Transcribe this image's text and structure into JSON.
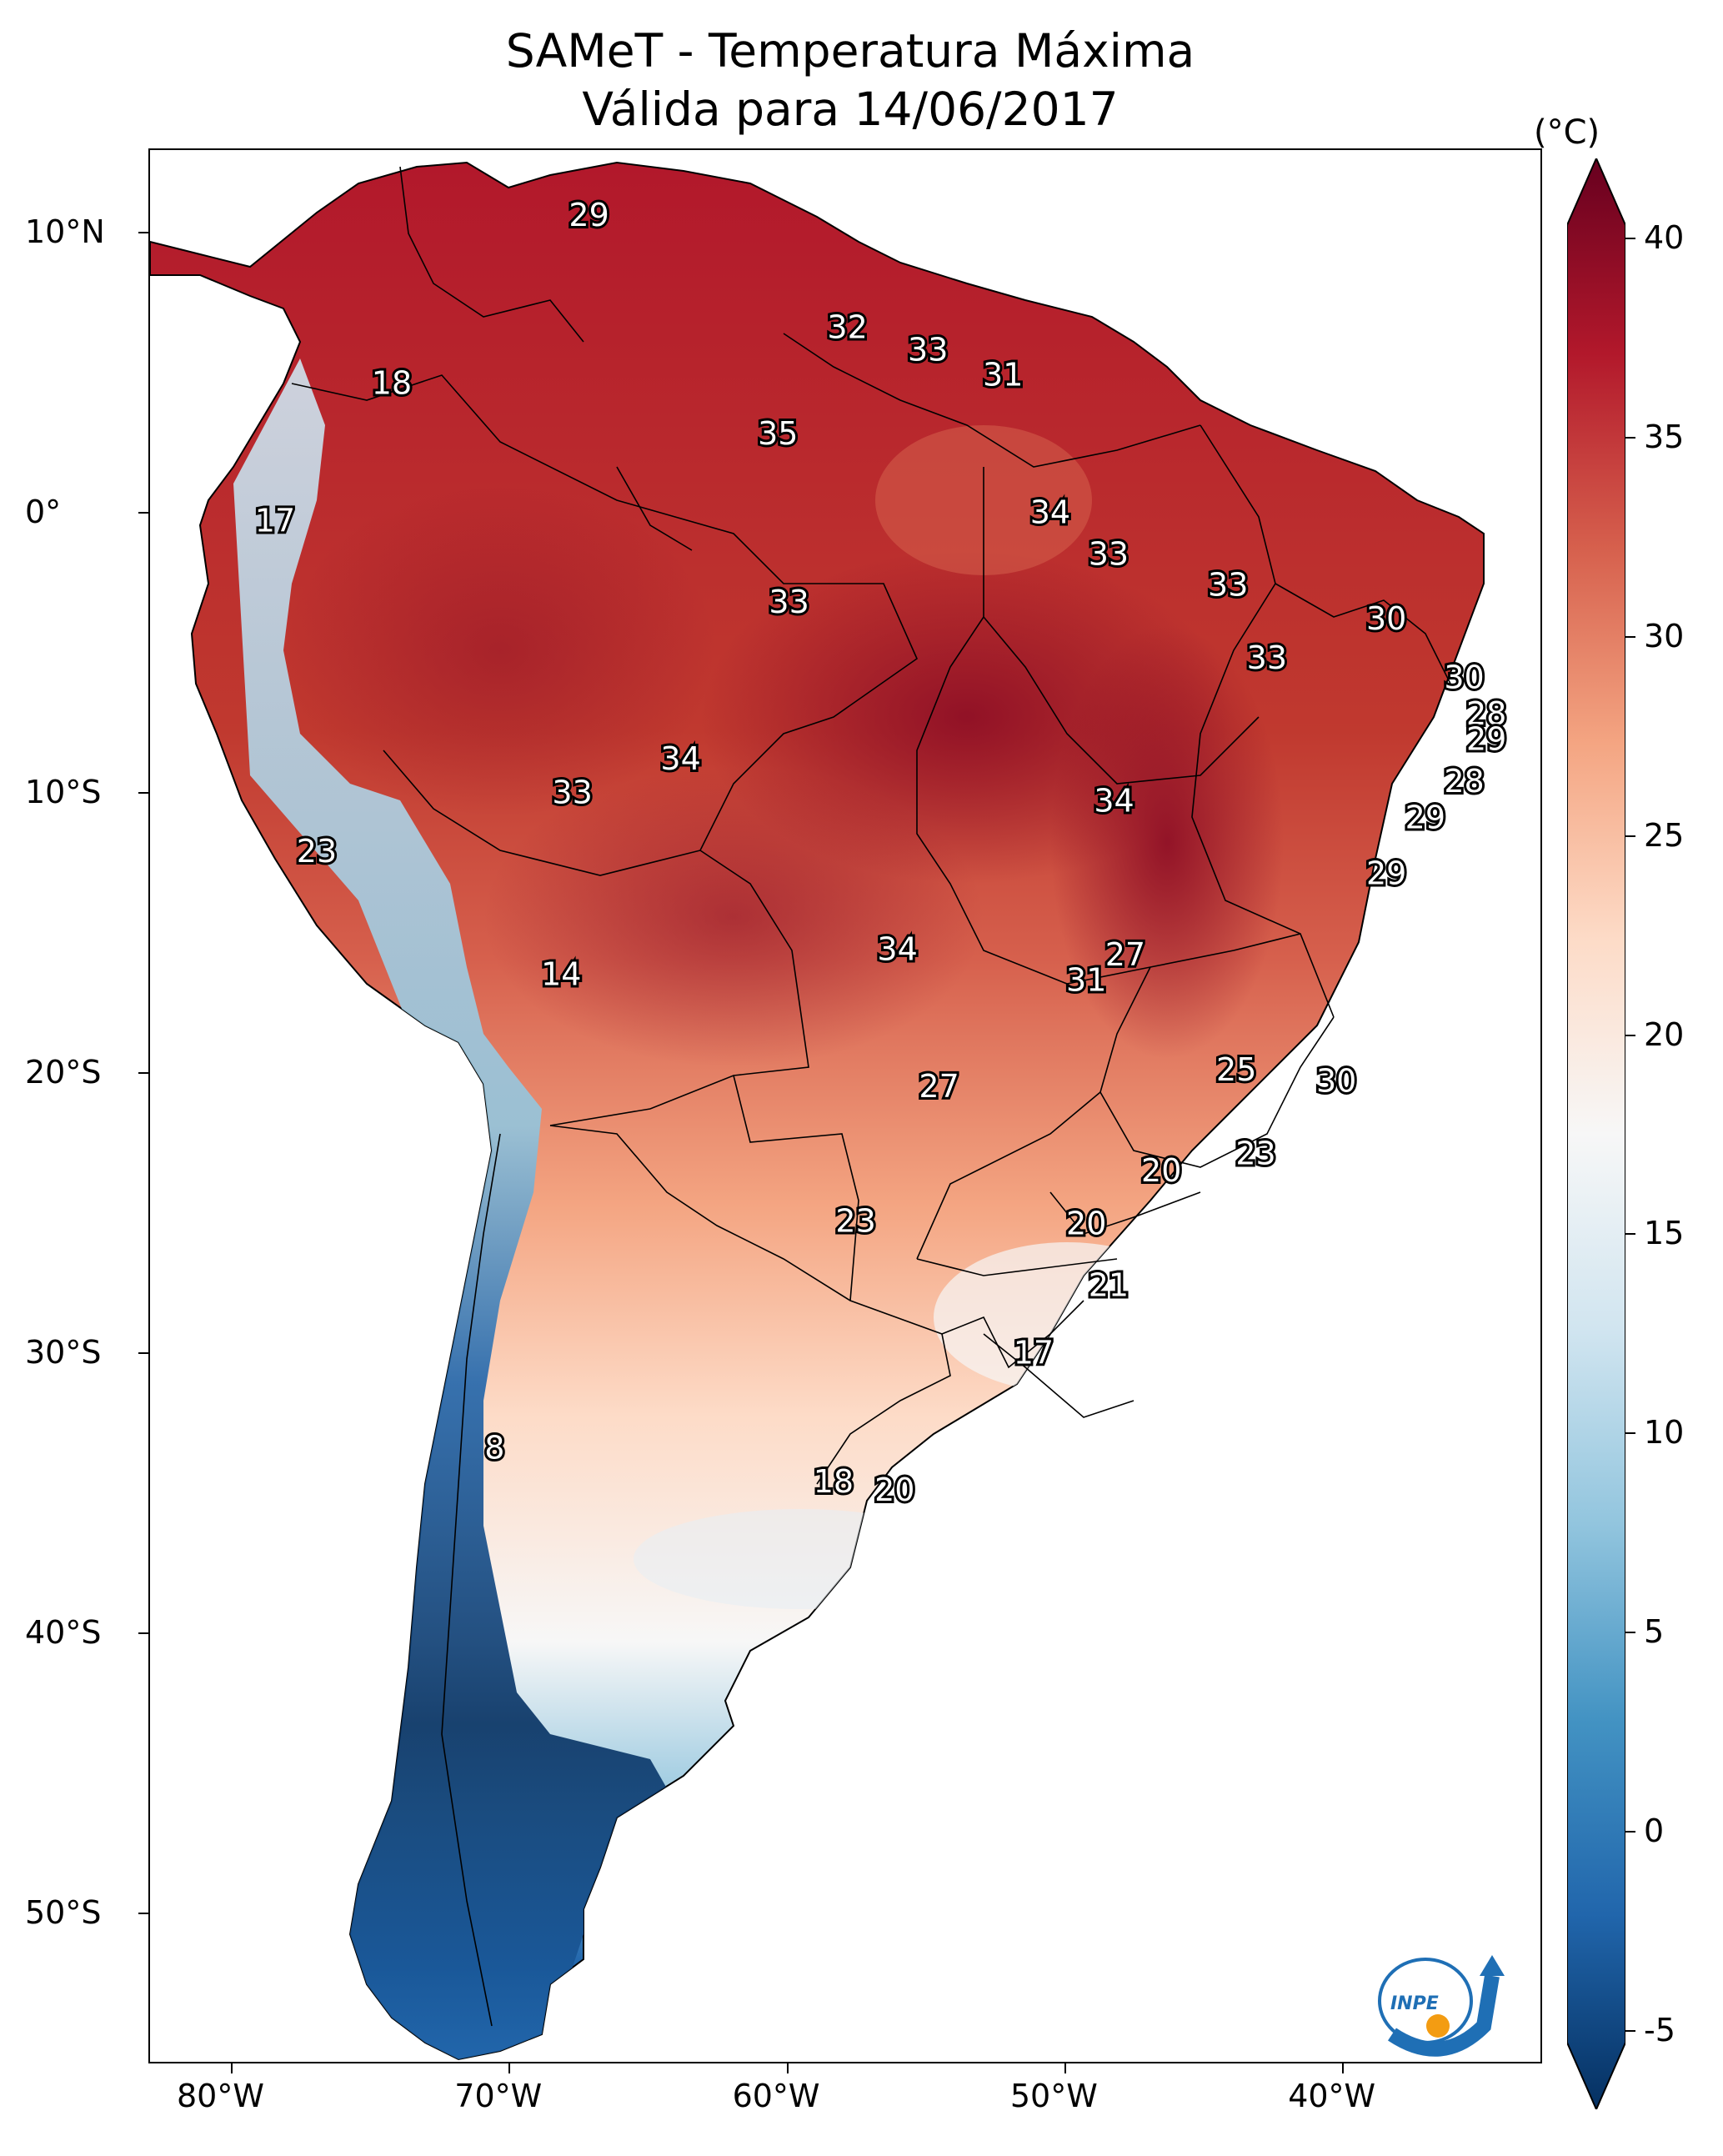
{
  "title_line1": "SAMeT - Temperatura Máxima",
  "title_line2": "Válida para 14/06/2017",
  "unit": "(°C)",
  "lat_labels": [
    "10°N",
    "0°",
    "10°S",
    "20°S",
    "30°S",
    "40°S",
    "50°S"
  ],
  "lon_labels": [
    "80°W",
    "70°W",
    "60°W",
    "50°W",
    "40°W"
  ],
  "colorbar": {
    "ticks": [
      "40",
      "35",
      "30",
      "25",
      "20",
      "15",
      "10",
      "5",
      "0",
      "-5"
    ],
    "min": -5,
    "max": 40,
    "colors": [
      "#053061",
      "#2166ac",
      "#4393c3",
      "#92c5de",
      "#d1e5f0",
      "#f7f7f7",
      "#fddbc7",
      "#f4a582",
      "#d6604d",
      "#b2182b",
      "#67001f"
    ]
  },
  "logo_text": "INPE",
  "station_values": [
    {
      "v": "29",
      "lon": -67.2,
      "lat": 10.6
    },
    {
      "v": "18",
      "lon": -74.3,
      "lat": 4.6
    },
    {
      "v": "17",
      "lon": -78.5,
      "lat": -0.3
    },
    {
      "v": "32",
      "lon": -57.9,
      "lat": 6.6
    },
    {
      "v": "33",
      "lon": -55.0,
      "lat": 5.8
    },
    {
      "v": "31",
      "lon": -52.3,
      "lat": 4.9
    },
    {
      "v": "35",
      "lon": -60.4,
      "lat": 2.8
    },
    {
      "v": "34",
      "lon": -50.6,
      "lat": 0.0
    },
    {
      "v": "33",
      "lon": -48.5,
      "lat": -1.5
    },
    {
      "v": "33",
      "lon": -44.2,
      "lat": -2.6
    },
    {
      "v": "33",
      "lon": -60.0,
      "lat": -3.2
    },
    {
      "v": "30",
      "lon": -38.5,
      "lat": -3.8
    },
    {
      "v": "33",
      "lon": -42.8,
      "lat": -5.2
    },
    {
      "v": "30",
      "lon": -35.7,
      "lat": -5.9
    },
    {
      "v": "28",
      "lon": -34.9,
      "lat": -7.2
    },
    {
      "v": "29",
      "lon": -34.9,
      "lat": -8.1
    },
    {
      "v": "34",
      "lon": -63.9,
      "lat": -8.8
    },
    {
      "v": "33",
      "lon": -67.8,
      "lat": -10.0
    },
    {
      "v": "34",
      "lon": -48.3,
      "lat": -10.3
    },
    {
      "v": "28",
      "lon": -35.7,
      "lat": -9.6
    },
    {
      "v": "29",
      "lon": -37.1,
      "lat": -10.9
    },
    {
      "v": "23",
      "lon": -77.0,
      "lat": -12.1
    },
    {
      "v": "29",
      "lon": -38.5,
      "lat": -12.9
    },
    {
      "v": "34",
      "lon": -56.1,
      "lat": -15.6
    },
    {
      "v": "27",
      "lon": -47.9,
      "lat": -15.8
    },
    {
      "v": "31",
      "lon": -49.3,
      "lat": -16.7
    },
    {
      "v": "14",
      "lon": -68.2,
      "lat": -16.5
    },
    {
      "v": "25",
      "lon": -43.9,
      "lat": -19.9
    },
    {
      "v": "30",
      "lon": -40.3,
      "lat": -20.3
    },
    {
      "v": "27",
      "lon": -54.6,
      "lat": -20.5
    },
    {
      "v": "23",
      "lon": -43.2,
      "lat": -22.9
    },
    {
      "v": "20",
      "lon": -46.6,
      "lat": -23.5
    },
    {
      "v": "23",
      "lon": -57.6,
      "lat": -25.3
    },
    {
      "v": "20",
      "lon": -49.3,
      "lat": -25.4
    },
    {
      "v": "21",
      "lon": -48.5,
      "lat": -27.6
    },
    {
      "v": "17",
      "lon": -51.2,
      "lat": -30.0
    },
    {
      "v": "8",
      "lon": -70.6,
      "lat": -33.4
    },
    {
      "v": "18",
      "lon": -58.4,
      "lat": -34.6
    },
    {
      "v": "20",
      "lon": -56.2,
      "lat": -34.9
    }
  ]
}
